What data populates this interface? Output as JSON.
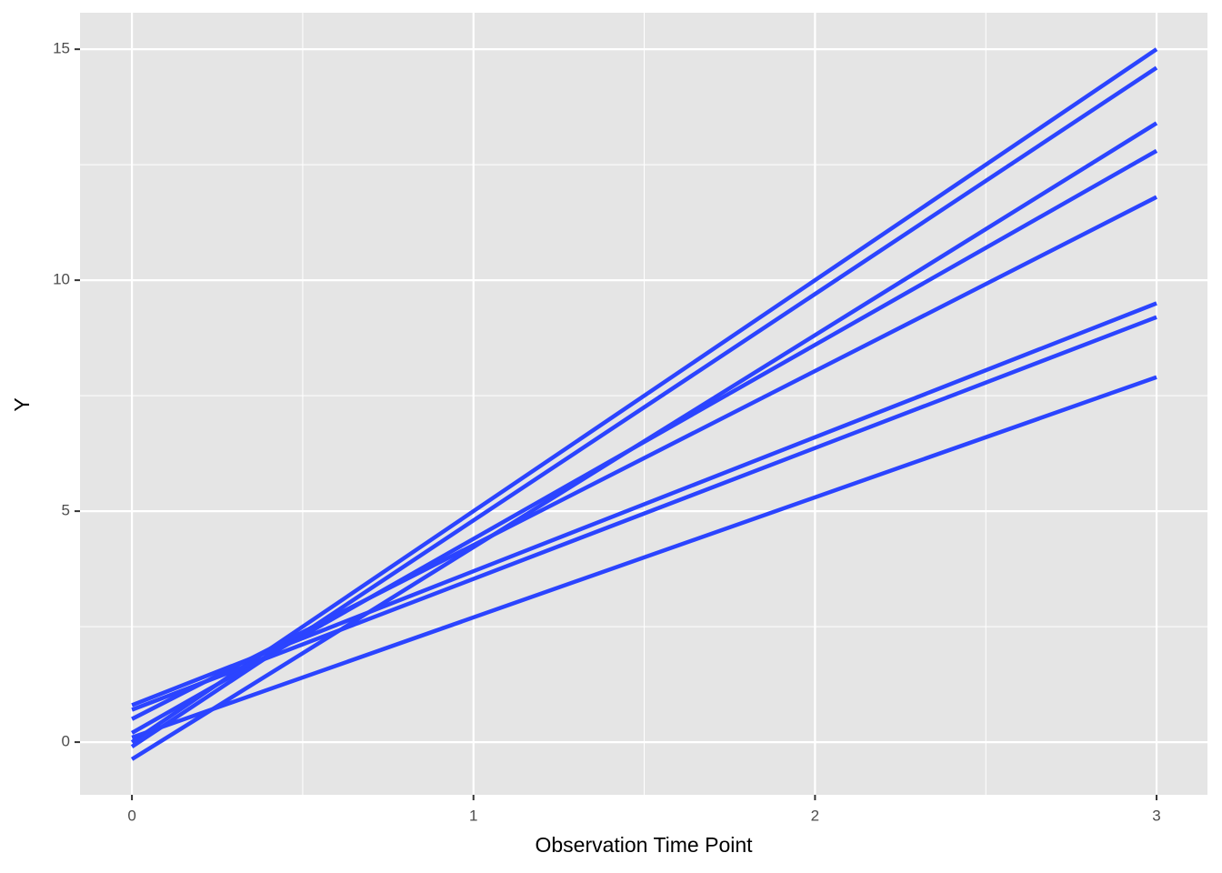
{
  "chart_data": {
    "type": "line",
    "x_label": "Observation Time Point",
    "y_label": "Y",
    "x": [
      0,
      3
    ],
    "series": [
      {
        "color": "#2b44ff",
        "values": [
          0.0,
          15.0
        ]
      },
      {
        "color": "#2b44ff",
        "values": [
          -0.1,
          14.6
        ]
      },
      {
        "color": "#2b44ff",
        "values": [
          -0.37,
          13.4
        ]
      },
      {
        "color": "#2b44ff",
        "values": [
          0.2,
          12.8
        ]
      },
      {
        "color": "#2b44ff",
        "values": [
          0.5,
          11.8
        ]
      },
      {
        "color": "#2b44ff",
        "values": [
          0.8,
          9.5
        ]
      },
      {
        "color": "#2b44ff",
        "values": [
          0.7,
          9.2
        ]
      },
      {
        "color": "#2b44ff",
        "values": [
          0.1,
          7.9
        ]
      }
    ],
    "xlim": [
      -0.152,
      3.149
    ],
    "ylim": [
      -1.14,
      15.79
    ],
    "xticks": [
      0,
      1,
      2,
      3
    ],
    "yticks": [
      0,
      5,
      10,
      15
    ],
    "xminorticks": [
      0.5,
      1.5,
      2.5
    ],
    "yminorticks": [
      2.5,
      7.5,
      12.5
    ],
    "grid": true,
    "panel_color": "#e5e5e5"
  }
}
